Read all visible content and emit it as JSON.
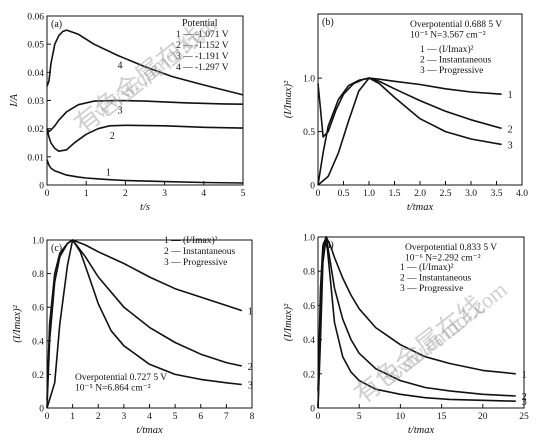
{
  "watermark": {
    "cn": "有色金属在线",
    "url": "www.cnmol.com"
  },
  "chart_data": [
    {
      "type": "line",
      "panel_label": "(a)",
      "xlabel": "t/s",
      "ylabel": "I/A",
      "xlim": [
        0,
        5
      ],
      "ylim": [
        0,
        0.06
      ],
      "xticks": [
        0,
        1,
        2,
        3,
        4,
        5
      ],
      "yticks": [
        0,
        0.01,
        0.02,
        0.03,
        0.04,
        0.05,
        0.06
      ],
      "xtick_labels": [
        "0",
        "1",
        "2",
        "3",
        "4",
        "5"
      ],
      "ytick_labels": [
        "0",
        "0.01",
        "0.02",
        "0.03",
        "0.04",
        "0.05",
        "0.06"
      ],
      "legend_title": "Potential",
      "legend": [
        "1 — -1.071 V",
        "2 — -1.152 V",
        "3 — -1.191 V",
        "4 — -1.297 V"
      ],
      "annotations": [],
      "series": [
        {
          "label": "1",
          "x": [
            0,
            0.05,
            0.1,
            0.2,
            0.3,
            0.5,
            0.8,
            1.0,
            1.5,
            2,
            3,
            4,
            5
          ],
          "y": [
            0.009,
            0.007,
            0.006,
            0.005,
            0.0045,
            0.0035,
            0.0028,
            0.0025,
            0.002,
            0.0016,
            0.0012,
            0.0009,
            0.0007
          ]
        },
        {
          "label": "2",
          "x": [
            0,
            0.05,
            0.1,
            0.2,
            0.3,
            0.5,
            0.7,
            1.0,
            1.3,
            1.6,
            2.0,
            3,
            4,
            5
          ],
          "y": [
            0.02,
            0.017,
            0.015,
            0.013,
            0.012,
            0.0125,
            0.015,
            0.018,
            0.02,
            0.021,
            0.0212,
            0.021,
            0.0205,
            0.0202
          ]
        },
        {
          "label": "3",
          "x": [
            0,
            0.05,
            0.1,
            0.2,
            0.3,
            0.5,
            0.8,
            1.2,
            1.8,
            2.5,
            3.5,
            4.5,
            5
          ],
          "y": [
            0.02,
            0.019,
            0.0195,
            0.021,
            0.023,
            0.026,
            0.0285,
            0.0298,
            0.03,
            0.0298,
            0.0292,
            0.0288,
            0.0287
          ]
        },
        {
          "label": "4",
          "x": [
            0,
            0.05,
            0.1,
            0.2,
            0.3,
            0.4,
            0.5,
            0.8,
            1.2,
            1.8,
            2.5,
            3.2,
            4,
            5
          ],
          "y": [
            0.035,
            0.037,
            0.043,
            0.05,
            0.053,
            0.0545,
            0.055,
            0.0535,
            0.05,
            0.046,
            0.042,
            0.0385,
            0.0355,
            0.032
          ]
        }
      ]
    },
    {
      "type": "line",
      "panel_label": "(b)",
      "xlabel": "t/tmax",
      "ylabel": "(I/Imax)²",
      "xlim": [
        0,
        4.0
      ],
      "ylim": [
        0,
        1.6
      ],
      "xticks": [
        0,
        0.5,
        1.0,
        1.5,
        2.0,
        2.5,
        3.0,
        3.5,
        4.0
      ],
      "yticks": [
        0,
        0.5,
        1.0
      ],
      "xtick_labels": [
        "0",
        "0.5",
        "1.0",
        "1.5",
        "2.0",
        "2.5",
        "3.0",
        "3.5",
        "4.0"
      ],
      "ytick_labels": [
        "0",
        "0.5",
        "1.0"
      ],
      "legend_title": "",
      "legend": [
        "1 — (I/Imax)²",
        "2 — Instantaneous",
        "3 — Progressive"
      ],
      "annotations": [
        "Overpotential 0.688 5 V",
        "10⁻⁵ N=3.567 cm⁻²"
      ],
      "series": [
        {
          "label": "1",
          "x": [
            0,
            0.05,
            0.1,
            0.2,
            0.35,
            0.5,
            0.7,
            0.9,
            1.0,
            1.2,
            1.5,
            2.0,
            2.5,
            3.0,
            3.6
          ],
          "y": [
            0.95,
            0.7,
            0.45,
            0.5,
            0.7,
            0.85,
            0.95,
            0.99,
            1.0,
            0.99,
            0.97,
            0.94,
            0.9,
            0.87,
            0.85
          ]
        },
        {
          "label": "2",
          "x": [
            0,
            0.1,
            0.2,
            0.4,
            0.6,
            0.8,
            1.0,
            1.2,
            1.5,
            2.0,
            2.5,
            3.0,
            3.6
          ],
          "y": [
            0,
            0.3,
            0.55,
            0.8,
            0.93,
            0.98,
            1.0,
            0.97,
            0.9,
            0.79,
            0.69,
            0.61,
            0.53
          ]
        },
        {
          "label": "3",
          "x": [
            0,
            0.2,
            0.4,
            0.6,
            0.8,
            1.0,
            1.2,
            1.5,
            2.0,
            2.5,
            3.0,
            3.6
          ],
          "y": [
            0,
            0.08,
            0.3,
            0.6,
            0.88,
            1.0,
            0.95,
            0.82,
            0.62,
            0.5,
            0.43,
            0.38
          ]
        }
      ]
    },
    {
      "type": "line",
      "panel_label": "(c)",
      "xlabel": "t/tmax",
      "ylabel": "(I/Imax)²",
      "xlim": [
        0,
        8
      ],
      "ylim": [
        0,
        1.0
      ],
      "xticks": [
        0,
        1,
        2,
        3,
        4,
        5,
        6,
        7,
        8
      ],
      "yticks": [
        0,
        0.2,
        0.4,
        0.6,
        0.8,
        1.0
      ],
      "xtick_labels": [
        "0",
        "1",
        "2",
        "3",
        "4",
        "5",
        "6",
        "7",
        "8"
      ],
      "ytick_labels": [
        "0",
        "0.2",
        "0.4",
        "0.6",
        "0.8",
        "1.0"
      ],
      "legend_title": "",
      "legend": [
        "1 — (I/Imax)²",
        "2 — Instantaneous",
        "3 — Progressive"
      ],
      "annotations": [
        "Overpotential 0.727 5 V",
        "10⁻⁵ N=6.864 cm⁻²"
      ],
      "series": [
        {
          "label": "1",
          "x": [
            0,
            0.1,
            0.3,
            0.5,
            0.8,
            1.0,
            1.5,
            2,
            3,
            4,
            5,
            6,
            7,
            7.6
          ],
          "y": [
            0.05,
            0.5,
            0.8,
            0.92,
            0.98,
            1.0,
            0.97,
            0.93,
            0.86,
            0.78,
            0.71,
            0.66,
            0.61,
            0.58
          ]
        },
        {
          "label": "2",
          "x": [
            0,
            0.1,
            0.3,
            0.5,
            0.8,
            1.0,
            1.5,
            2,
            3,
            4,
            5,
            6,
            7,
            7.6
          ],
          "y": [
            0,
            0.4,
            0.75,
            0.9,
            0.98,
            1.0,
            0.9,
            0.78,
            0.6,
            0.48,
            0.39,
            0.32,
            0.27,
            0.25
          ]
        },
        {
          "label": "3",
          "x": [
            0,
            0.3,
            0.5,
            0.8,
            1.0,
            1.3,
            1.6,
            2,
            2.5,
            3,
            4,
            5,
            6,
            7,
            7.6
          ],
          "y": [
            0,
            0.15,
            0.5,
            0.85,
            1.0,
            0.93,
            0.8,
            0.62,
            0.46,
            0.37,
            0.26,
            0.2,
            0.17,
            0.15,
            0.14
          ]
        }
      ]
    },
    {
      "type": "line",
      "panel_label": "(d)",
      "xlabel": "t/tmax",
      "ylabel": "(I/Imax)²",
      "xlim": [
        0,
        25
      ],
      "ylim": [
        0,
        1.0
      ],
      "xticks": [
        0,
        5,
        10,
        15,
        20,
        25
      ],
      "yticks": [
        0,
        0.2,
        0.4,
        0.6,
        0.8,
        1.0
      ],
      "xtick_labels": [
        "0",
        "5",
        "10",
        "15",
        "20",
        "25"
      ],
      "ytick_labels": [
        "0",
        "0.2",
        "0.4",
        "0.6",
        "0.8",
        "1.0"
      ],
      "legend_title": "",
      "legend": [
        "1 — (I/Imax)²",
        "2 — Instantaneous",
        "3 — Progressive"
      ],
      "annotations": [
        "Overpotential 0.833 5 V",
        "10⁻⁶ N=2.292 cm⁻²"
      ],
      "series": [
        {
          "label": "1",
          "x": [
            0,
            0.3,
            0.6,
            1.0,
            1.5,
            2,
            3,
            4,
            5,
            7,
            10,
            13,
            16,
            20,
            24
          ],
          "y": [
            0.1,
            0.7,
            0.95,
            1.0,
            0.95,
            0.88,
            0.76,
            0.66,
            0.58,
            0.47,
            0.37,
            0.3,
            0.26,
            0.22,
            0.2
          ]
        },
        {
          "label": "2",
          "x": [
            0,
            0.3,
            0.6,
            1.0,
            1.5,
            2,
            3,
            4,
            5,
            7,
            10,
            13,
            16,
            20,
            24
          ],
          "y": [
            0,
            0.6,
            0.9,
            1.0,
            0.85,
            0.7,
            0.52,
            0.4,
            0.32,
            0.23,
            0.16,
            0.12,
            0.1,
            0.08,
            0.07
          ]
        },
        {
          "label": "3",
          "x": [
            0,
            0.3,
            0.6,
            1.0,
            1.5,
            2,
            3,
            4,
            5,
            7,
            10,
            13,
            16,
            20,
            24
          ],
          "y": [
            0,
            0.4,
            0.85,
            1.0,
            0.75,
            0.5,
            0.3,
            0.21,
            0.16,
            0.11,
            0.08,
            0.06,
            0.05,
            0.045,
            0.04
          ]
        }
      ]
    }
  ]
}
